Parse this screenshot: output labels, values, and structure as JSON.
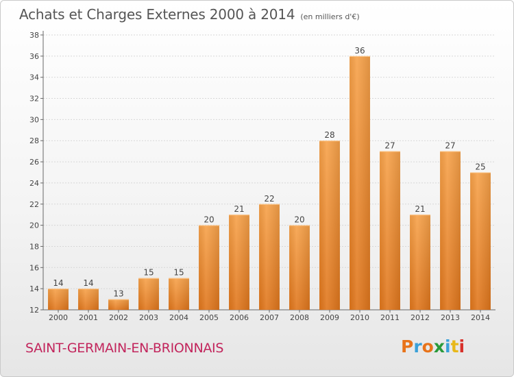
{
  "page": {
    "title": "Achats et Charges Externes 2000 à 2014",
    "unit": "(en milliers d'€)",
    "commune": "SAINT-GERMAIN-EN-BRIONNAIS",
    "logo": "Proxiti",
    "logo_colors": [
      "#e8731a",
      "#3aa0d8",
      "#e8731a",
      "#2a9a3a",
      "#3aa0d8",
      "#e8b81a",
      "#d8302a"
    ]
  },
  "chart_data": {
    "type": "bar",
    "title": "Achats et Charges Externes 2000 à 2014",
    "xlabel": "",
    "ylabel": "",
    "categories": [
      "2000",
      "2001",
      "2002",
      "2003",
      "2004",
      "2005",
      "2006",
      "2007",
      "2008",
      "2009",
      "2010",
      "2011",
      "2012",
      "2013",
      "2014"
    ],
    "values": [
      14,
      14,
      13,
      15,
      15,
      20,
      21,
      22,
      20,
      28,
      36,
      27,
      21,
      27,
      25
    ],
    "ylim": [
      12,
      38
    ],
    "yticks": [
      12,
      14,
      16,
      18,
      20,
      22,
      24,
      26,
      28,
      30,
      32,
      34,
      36,
      38
    ],
    "grid": true,
    "bar_color": "#f39233"
  }
}
